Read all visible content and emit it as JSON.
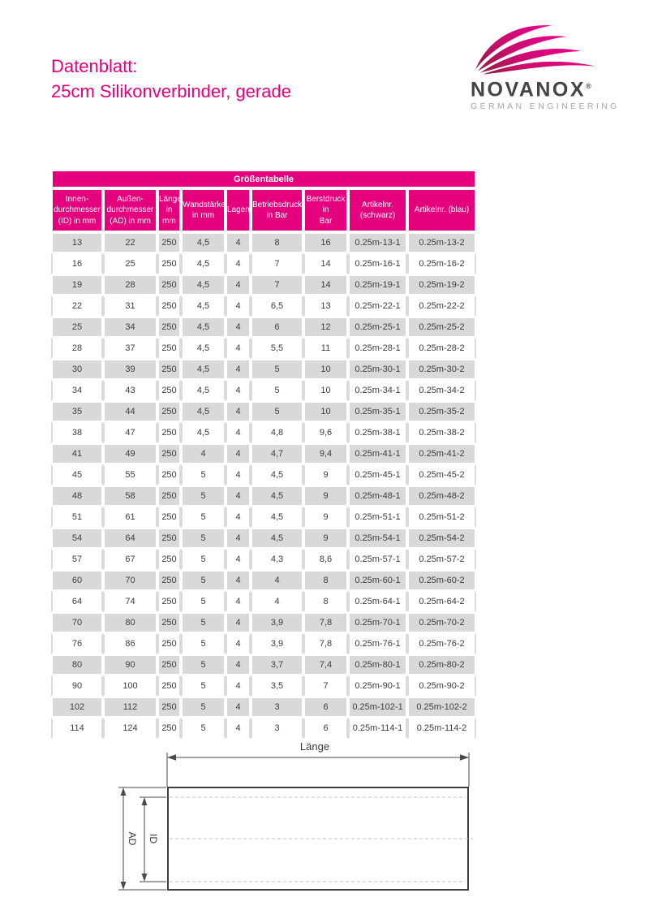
{
  "header": {
    "title_line1": "Datenblatt:",
    "title_line2": "25cm Silikonverbinder, gerade"
  },
  "logo": {
    "brand": "NOVANOX",
    "registered": "®",
    "tagline": "GERMAN ENGINEERING",
    "swoosh_icon": "swoosh-arcs"
  },
  "colors": {
    "accent_magenta": "#e5007d",
    "row_gray": "#d9d9d9",
    "logo_dark_gray": "#434348",
    "logo_light_gray": "#a6a6a6",
    "swoosh_dark": "#8e1a43",
    "swoosh_bright": "#ec008c"
  },
  "table": {
    "title": "Größentabelle",
    "columns": [
      {
        "lines": [
          "Innen-",
          "durchmesser",
          "(ID) in mm"
        ]
      },
      {
        "lines": [
          "Außen-",
          "durchmesser",
          "(AD) in mm"
        ]
      },
      {
        "lines": [
          "Länge",
          "in mm"
        ]
      },
      {
        "lines": [
          "Wandstärke",
          "in mm"
        ]
      },
      {
        "lines": [
          "Lagen"
        ]
      },
      {
        "lines": [
          "Betriebsdruck",
          "in Bar"
        ]
      },
      {
        "lines": [
          "Berstdruck in",
          "Bar"
        ]
      },
      {
        "lines": [
          "Artikelnr.",
          "(schwarz)"
        ]
      },
      {
        "lines": [
          "Artikelnr. (blau)"
        ]
      }
    ],
    "rows": [
      [
        "13",
        "22",
        "250",
        "4,5",
        "4",
        "8",
        "16",
        "0.25m-13-1",
        "0.25m-13-2"
      ],
      [
        "16",
        "25",
        "250",
        "4,5",
        "4",
        "7",
        "14",
        "0.25m-16-1",
        "0.25m-16-2"
      ],
      [
        "19",
        "28",
        "250",
        "4,5",
        "4",
        "7",
        "14",
        "0.25m-19-1",
        "0.25m-19-2"
      ],
      [
        "22",
        "31",
        "250",
        "4,5",
        "4",
        "6,5",
        "13",
        "0.25m-22-1",
        "0.25m-22-2"
      ],
      [
        "25",
        "34",
        "250",
        "4,5",
        "4",
        "6",
        "12",
        "0.25m-25-1",
        "0.25m-25-2"
      ],
      [
        "28",
        "37",
        "250",
        "4,5",
        "4",
        "5,5",
        "11",
        "0.25m-28-1",
        "0.25m-28-2"
      ],
      [
        "30",
        "39",
        "250",
        "4,5",
        "4",
        "5",
        "10",
        "0.25m-30-1",
        "0.25m-30-2"
      ],
      [
        "34",
        "43",
        "250",
        "4,5",
        "4",
        "5",
        "10",
        "0.25m-34-1",
        "0.25m-34-2"
      ],
      [
        "35",
        "44",
        "250",
        "4,5",
        "4",
        "5",
        "10",
        "0.25m-35-1",
        "0.25m-35-2"
      ],
      [
        "38",
        "47",
        "250",
        "4,5",
        "4",
        "4,8",
        "9,6",
        "0.25m-38-1",
        "0.25m-38-2"
      ],
      [
        "41",
        "49",
        "250",
        "4",
        "4",
        "4,7",
        "9,4",
        "0.25m-41-1",
        "0.25m-41-2"
      ],
      [
        "45",
        "55",
        "250",
        "5",
        "4",
        "4,5",
        "9",
        "0.25m-45-1",
        "0.25m-45-2"
      ],
      [
        "48",
        "58",
        "250",
        "5",
        "4",
        "4,5",
        "9",
        "0.25m-48-1",
        "0.25m-48-2"
      ],
      [
        "51",
        "61",
        "250",
        "5",
        "4",
        "4,5",
        "9",
        "0.25m-51-1",
        "0.25m-51-2"
      ],
      [
        "54",
        "64",
        "250",
        "5",
        "4",
        "4,5",
        "9",
        "0.25m-54-1",
        "0.25m-54-2"
      ],
      [
        "57",
        "67",
        "250",
        "5",
        "4",
        "4,3",
        "8,6",
        "0.25m-57-1",
        "0.25m-57-2"
      ],
      [
        "60",
        "70",
        "250",
        "5",
        "4",
        "4",
        "8",
        "0.25m-60-1",
        "0.25m-60-2"
      ],
      [
        "64",
        "74",
        "250",
        "5",
        "4",
        "4",
        "8",
        "0.25m-64-1",
        "0.25m-64-2"
      ],
      [
        "70",
        "80",
        "250",
        "5",
        "4",
        "3,9",
        "7,8",
        "0.25m-70-1",
        "0.25m-70-2"
      ],
      [
        "76",
        "86",
        "250",
        "5",
        "4",
        "3,9",
        "7,8",
        "0.25m-76-1",
        "0.25m-76-2"
      ],
      [
        "80",
        "90",
        "250",
        "5",
        "4",
        "3,7",
        "7,4",
        "0.25m-80-1",
        "0.25m-80-2"
      ],
      [
        "90",
        "100",
        "250",
        "5",
        "4",
        "3,5",
        "7",
        "0.25m-90-1",
        "0.25m-90-2"
      ],
      [
        "102",
        "112",
        "250",
        "5",
        "4",
        "3",
        "6",
        "0.25m-102-1",
        "0.25m-102-2"
      ],
      [
        "114",
        "124",
        "250",
        "5",
        "4",
        "3",
        "6",
        "0.25m-114-1",
        "0.25m-114-2"
      ]
    ]
  },
  "diagram": {
    "length_label": "Länge",
    "ad_label": "AD",
    "id_label": "ID"
  }
}
